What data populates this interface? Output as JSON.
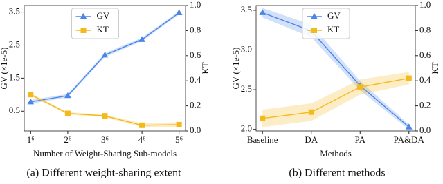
{
  "chart_data": [
    {
      "type": "line",
      "caption": "(a) Different weight-sharing extent",
      "xlabel": "Number of Weight-Sharing Sub-models",
      "ylabel": "GV (×1e-5)",
      "y2label": "KT",
      "categories": [
        "1⁶",
        "2⁶",
        "3⁶",
        "4⁶",
        "5⁶"
      ],
      "ylim": [
        -0.1,
        3.7
      ],
      "yticks": [
        0.5,
        1.5,
        2.5,
        3.5
      ],
      "y2lim": [
        0,
        1
      ],
      "y2ticks": [
        {
          "value": 0,
          "label": "0.0"
        },
        0.2,
        0.4,
        0.6,
        0.8,
        {
          "value": 1,
          "label": "1.0"
        }
      ],
      "legend": "upper center",
      "series": [
        {
          "name": "GV",
          "color": "#4a86e8",
          "marker": "triangle",
          "values": [
            0.78,
            0.97,
            2.2,
            2.67,
            3.48
          ],
          "errors": [
            0.06,
            0.05,
            0.06,
            0.05,
            0.05
          ]
        },
        {
          "name": "KT",
          "color": "#f4b91a",
          "marker": "square",
          "axis": "y2",
          "values": [
            0.29,
            0.14,
            0.12,
            0.045,
            0.05
          ],
          "errors": [
            0.01,
            0.01,
            0.01,
            0.015,
            0.02
          ]
        }
      ]
    },
    {
      "type": "line",
      "caption": "(b) Different methods",
      "xlabel": "Methods",
      "ylabel": "GV (×1e-5)",
      "y2label": "KT",
      "categories": [
        "Baseline",
        "DA",
        "PA",
        "PA&DA"
      ],
      "ylim": [
        1.98,
        3.56
      ],
      "yticks": [
        {
          "value": 2,
          "label": "2.0"
        },
        2.5,
        {
          "value": 3,
          "label": "3.0"
        },
        3.5
      ],
      "y2lim": [
        0,
        1
      ],
      "y2ticks": [
        {
          "value": 0,
          "label": "0.0"
        },
        0.2,
        0.4,
        0.6,
        0.8,
        {
          "value": 1,
          "label": "1.0"
        }
      ],
      "legend": "upper center",
      "series": [
        {
          "name": "GV",
          "color": "#4a86e8",
          "marker": "triangle",
          "values": [
            3.47,
            3.24,
            2.55,
            2.03
          ],
          "errors": [
            0.06,
            0.08,
            0.06,
            0.03
          ]
        },
        {
          "name": "KT",
          "color": "#f4b91a",
          "marker": "square",
          "axis": "y2",
          "values": [
            0.1,
            0.15,
            0.35,
            0.42
          ],
          "errors": [
            0.07,
            0.07,
            0.06,
            0.05
          ]
        }
      ]
    }
  ]
}
